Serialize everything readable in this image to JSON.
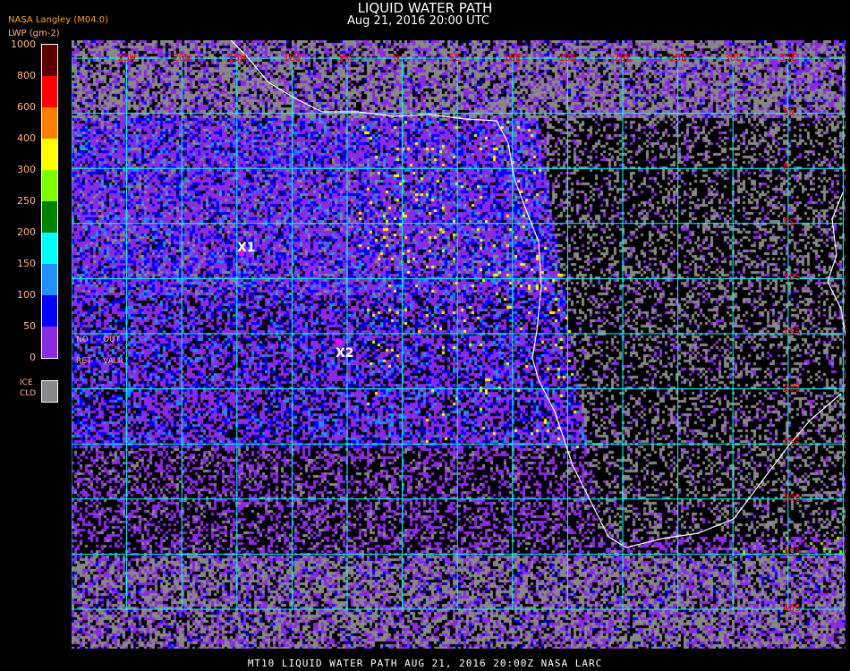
{
  "header": {
    "title": "LIQUID WATER PATH",
    "subtitle": "Aug 21, 2016 20:00 UTC"
  },
  "legend": {
    "source": "NASA Langley (M04.0)",
    "unit": "LWP (gm-2)",
    "ticks": [
      "1000",
      "800",
      "600",
      "400",
      "300",
      "250",
      "200",
      "150",
      "100",
      "50",
      "0"
    ],
    "colors": [
      "#5a0000",
      "#ff0000",
      "#ff7f00",
      "#ffff00",
      "#7fff00",
      "#008000",
      "#00ffff",
      "#1e90ff",
      "#0000ff",
      "#8a2be2"
    ],
    "ice_label": [
      "ICE",
      "CLD"
    ],
    "ice_color": "#888888"
  },
  "map": {
    "lon_labels": [
      "25W",
      "20W",
      "15W",
      "10W",
      "5W",
      "0",
      "5E",
      "10E",
      "15E",
      "20E",
      "25E",
      "30E",
      "35E"
    ],
    "lat_labels": [
      "5N",
      "0",
      "5S",
      "10S",
      "15S",
      "20S",
      "25S",
      "30S",
      "35S",
      "40S"
    ],
    "grid_color": "#00ffff",
    "coast_color": "#ffffff",
    "no_retrieval_note": [
      "NO",
      "OUT",
      "RET",
      "VALR"
    ],
    "markers": [
      "X1",
      "X2"
    ]
  },
  "footer": "MT10  LIQUID WATER PATH   AUG 21, 2016 20:00Z   NASA LARC"
}
